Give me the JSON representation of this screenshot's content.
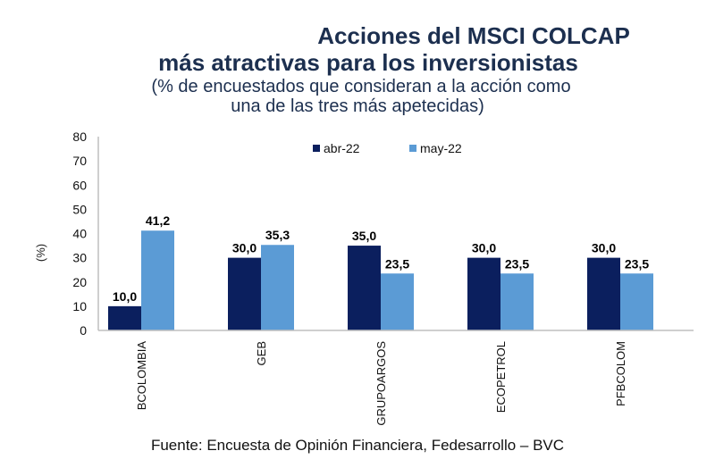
{
  "title_line1": "Acciones del MSCI COLCAP",
  "title_line2": "más atractivas para los inversionistas",
  "subtitle_line1": "(% de encuestados que consideran a la acción como",
  "subtitle_line2": "una de las tres más apetecidas)",
  "source": "Fuente: Encuesta de Opinión Financiera, Fedesarrollo – BVC",
  "colors": {
    "abr-22": "#0b1f5e",
    "may-22": "#5b9bd5",
    "axis": "#bfbfbf",
    "title": "#1c2f4f"
  },
  "chart_data": {
    "type": "bar",
    "title": "Acciones del MSCI COLCAP más atractivas para los inversionistas",
    "subtitle": "(% de encuestados que consideran a la acción como una de las tres más apetecidas)",
    "xlabel": "",
    "ylabel": "(%)",
    "ylim": [
      0,
      80
    ],
    "yticks": [
      0,
      10,
      20,
      30,
      40,
      50,
      60,
      70,
      80
    ],
    "grid": false,
    "legend_position": "top-center",
    "categories": [
      "BCOLOMBIA",
      "GEB",
      "GRUPOARGOS",
      "ECOPETROL",
      "PFBCOLOM"
    ],
    "series": [
      {
        "name": "abr-22",
        "values": [
          10.0,
          30.0,
          35.0,
          30.0,
          30.0
        ],
        "labels": [
          "10,0",
          "30,0",
          "35,0",
          "30,0",
          "30,0"
        ]
      },
      {
        "name": "may-22",
        "values": [
          41.2,
          35.3,
          23.5,
          23.5,
          23.5
        ],
        "labels": [
          "41,2",
          "35,3",
          "23,5",
          "23,5",
          "23,5"
        ]
      }
    ]
  }
}
